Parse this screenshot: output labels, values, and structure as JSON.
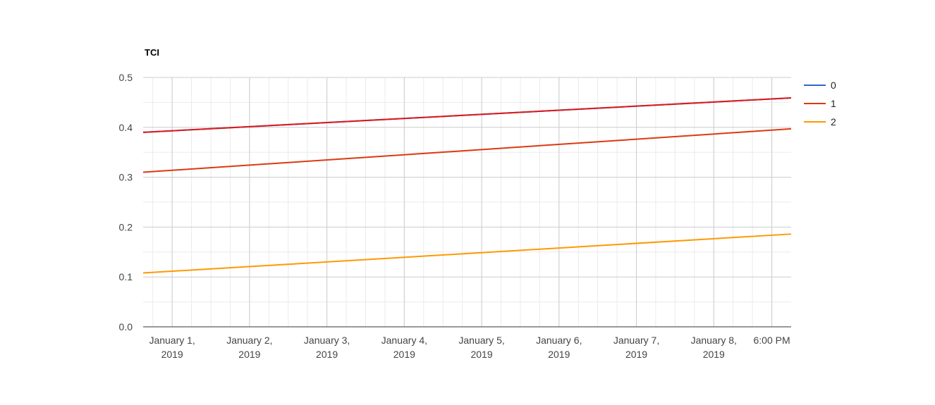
{
  "chart_data": {
    "type": "line",
    "title": "TCI",
    "xlabel": "",
    "ylabel": "",
    "x_ticks": [
      [
        "January 1,",
        "2019"
      ],
      [
        "January 2,",
        "2019"
      ],
      [
        "January 3,",
        "2019"
      ],
      [
        "January 4,",
        "2019"
      ],
      [
        "January 5,",
        "2019"
      ],
      [
        "January 6,",
        "2019"
      ],
      [
        "January 7,",
        "2019"
      ],
      [
        "January 8,",
        "2019"
      ],
      [
        "6:00 PM"
      ]
    ],
    "x_tick_dates": [
      "2019-01-01T00:00",
      "2019-01-02T00:00",
      "2019-01-03T00:00",
      "2019-01-04T00:00",
      "2019-01-05T00:00",
      "2019-01-06T00:00",
      "2019-01-07T00:00",
      "2019-01-08T00:00",
      "2019-01-08T18:00"
    ],
    "xlim": [
      "2018-12-31T15:00",
      "2019-01-09T00:00"
    ],
    "ylim": [
      0,
      0.5
    ],
    "y_ticks": [
      "0.0",
      "0.1",
      "0.2",
      "0.3",
      "0.4",
      "0.5"
    ],
    "grid": true,
    "legend_position": "right",
    "series": [
      {
        "name": "0",
        "color": "#3366cc",
        "x": [
          "2018-12-31T15:00",
          "2019-01-09T00:00"
        ],
        "values": [
          0.39,
          0.459
        ]
      },
      {
        "name": "1",
        "color": "#dc3912",
        "x": [
          "2018-12-31T15:00",
          "2019-01-09T00:00"
        ],
        "values": [
          0.31,
          0.397
        ]
      },
      {
        "name": "2",
        "color": "#ff9900",
        "x": [
          "2018-12-31T15:00",
          "2019-01-09T00:00"
        ],
        "values": [
          0.108,
          0.186
        ]
      },
      {
        "name": "",
        "color": "#dd1a1a",
        "x": [
          "2018-12-31T15:00",
          "2019-01-09T00:00"
        ],
        "values": [
          0.39,
          0.459
        ]
      }
    ]
  }
}
